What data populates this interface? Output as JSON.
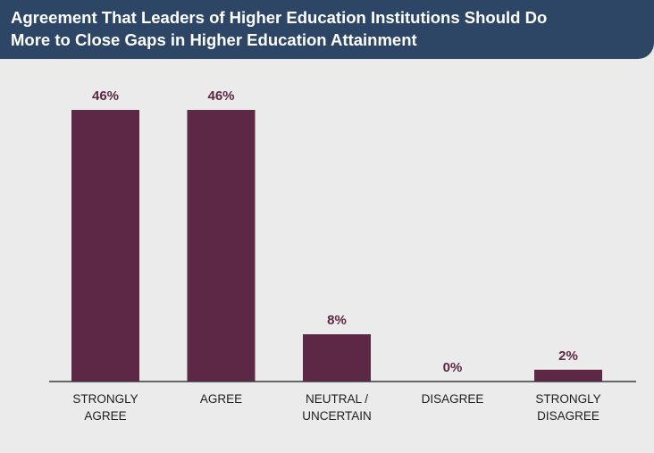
{
  "header": {
    "title": "Agreement That Leaders of Higher Education Institutions Should Do\nMore to Close Gaps in Higher Education Attainment"
  },
  "colors": {
    "header_bg": "#2d4665",
    "bar": "#5c2845",
    "background": "#ebebeb"
  },
  "chart_data": {
    "type": "bar",
    "title": "Agreement That Leaders of Higher Education Institutions Should Do More to Close Gaps in Higher Education Attainment",
    "categories": [
      [
        "STRONGLY",
        "AGREE"
      ],
      [
        "AGREE"
      ],
      [
        "NEUTRAL /",
        "UNCERTAIN"
      ],
      [
        "DISAGREE"
      ],
      [
        "STRONGLY",
        "DISAGREE"
      ]
    ],
    "values": [
      46,
      46,
      8,
      0,
      2
    ],
    "value_labels": [
      "46%",
      "46%",
      "8%",
      "0%",
      "2%"
    ],
    "ylim": [
      0,
      46
    ],
    "grid": false,
    "legend": "none"
  }
}
